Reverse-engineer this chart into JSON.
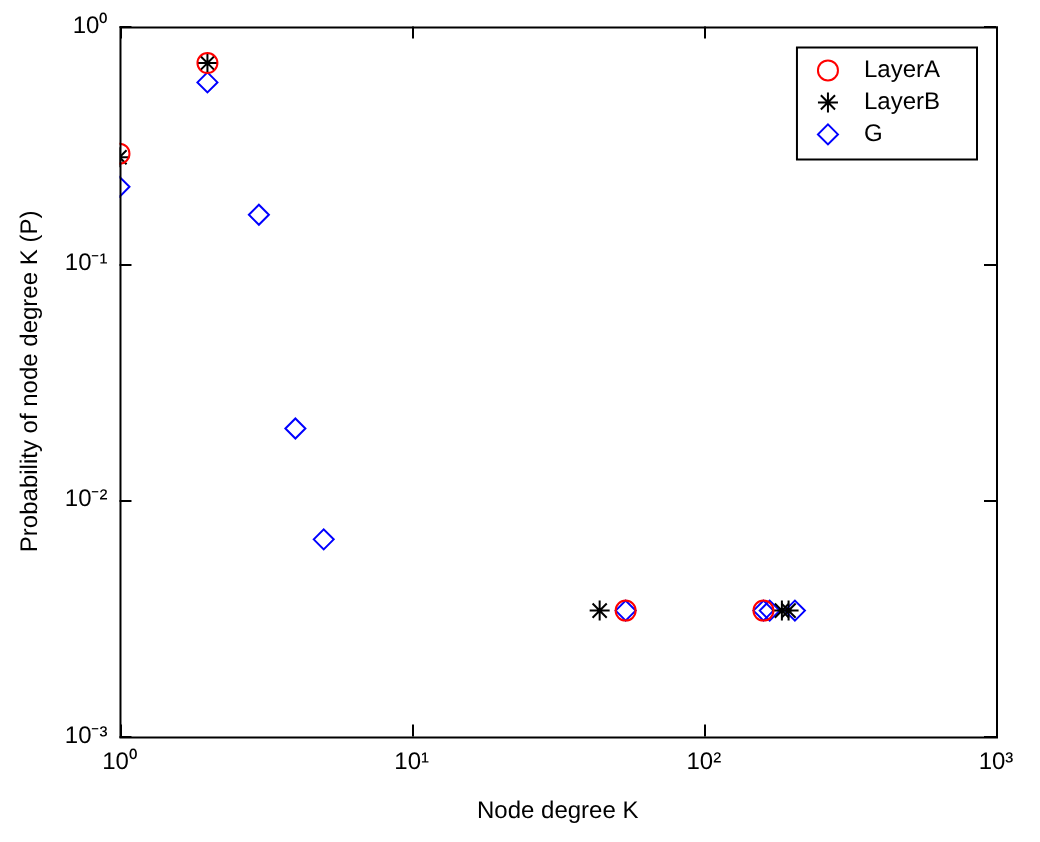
{
  "chart_data": {
    "type": "scatter",
    "xlabel": "Node degree K",
    "ylabel": "Probability of node degree K (P)",
    "log": "xy",
    "grid": false,
    "legend": "top right",
    "xlim": [
      1,
      1000
    ],
    "xticks": [
      {
        "value": 1,
        "label": "10⁰"
      },
      {
        "value": 10,
        "label": "10¹"
      },
      {
        "value": 100,
        "label": "10²"
      },
      {
        "value": 1000,
        "label": "10³"
      }
    ],
    "ylim": [
      0.001,
      1
    ],
    "yticks": [
      {
        "value": 0.001,
        "label": "10⁻³"
      },
      {
        "value": 0.01,
        "label": "10⁻²"
      },
      {
        "value": 0.1,
        "label": "10⁻¹"
      },
      {
        "value": 1,
        "label": "10⁰"
      }
    ],
    "series": [
      {
        "name": "LayerA",
        "color": "#ff0000",
        "marker": "circle",
        "x": [
          1,
          2,
          54,
          160
        ],
        "values": [
          0.29,
          0.7,
          0.0034,
          0.0034
        ]
      },
      {
        "name": "LayerB",
        "color": "#000000",
        "marker": "cross",
        "x": [
          1,
          2,
          44,
          185,
          195
        ],
        "values": [
          0.28,
          0.7,
          0.0034,
          0.0034,
          0.0034
        ]
      },
      {
        "name": "G",
        "color": "#0000ff",
        "marker": "diamond",
        "x": [
          1,
          2,
          3,
          4,
          5,
          54,
          160,
          168,
          205
        ],
        "values": [
          0.21,
          0.58,
          0.16,
          0.02,
          0.0068,
          0.0034,
          0.0034,
          0.0034,
          0.0034
        ]
      }
    ]
  }
}
